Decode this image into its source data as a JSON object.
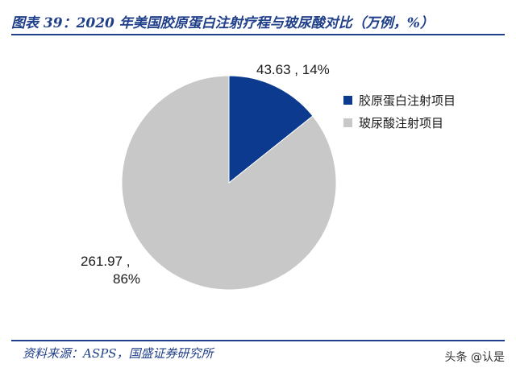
{
  "header": {
    "title": "图表 39：2020 年美国胶原蛋白注射疗程与玻尿酸对比（万例，%）"
  },
  "chart_data": {
    "type": "pie",
    "slices": [
      {
        "name": "胶原蛋白注射项目",
        "value": 43.63,
        "percent": 14,
        "color": "#0b3a8f",
        "label_value": "43.63 ,",
        "label_percent": "14%"
      },
      {
        "name": "玻尿酸注射项目",
        "value": 261.97,
        "percent": 86,
        "color": "#c8c8c8",
        "label_value": "261.97 ,",
        "label_percent": "86%"
      }
    ],
    "start_angle": "12 o'clock",
    "direction": "clockwise",
    "legend_position": "right"
  },
  "footer": {
    "source": "资料来源：ASPS，国盛证券研究所",
    "watermark": "头条 @认是"
  }
}
